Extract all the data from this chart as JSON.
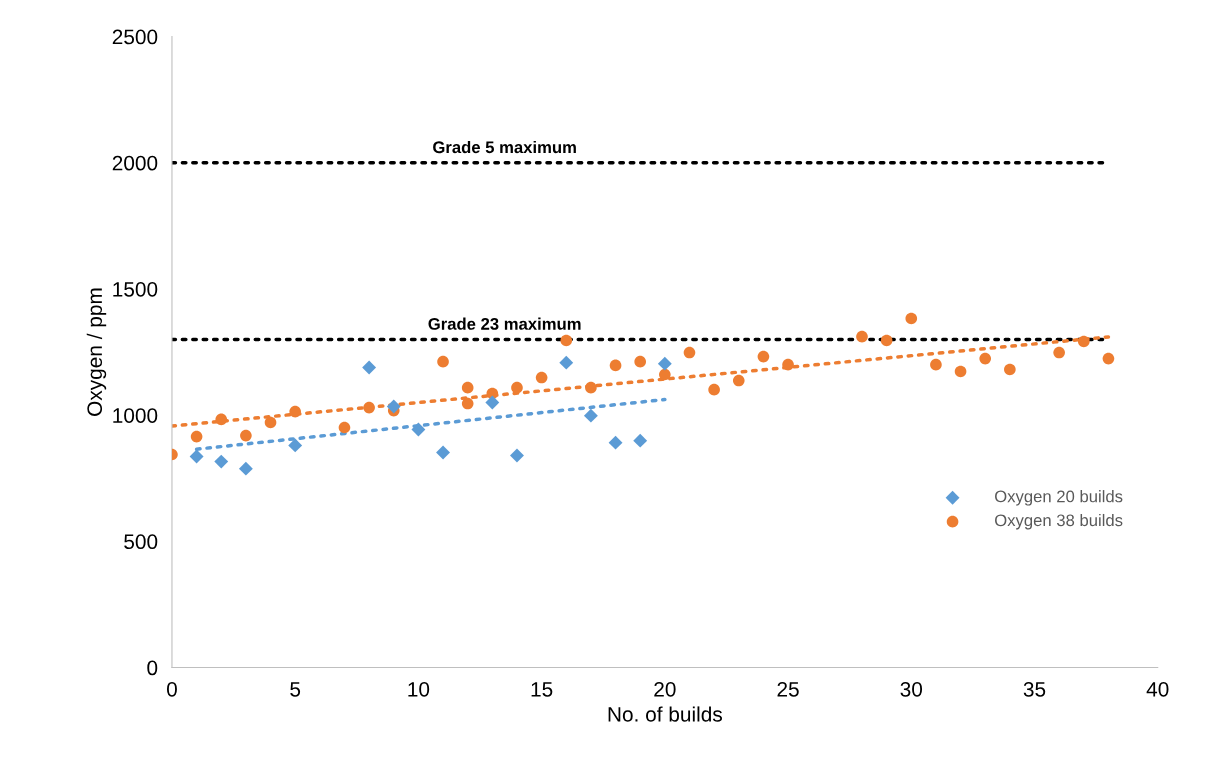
{
  "chart_data": {
    "type": "scatter",
    "xlabel": "No. of builds",
    "ylabel": "Oxygen / ppm",
    "xlim": [
      0,
      40
    ],
    "xticks": [
      0,
      5,
      10,
      15,
      20,
      25,
      30,
      35,
      40
    ],
    "ylim": [
      0,
      2500
    ],
    "yticks": [
      0,
      500,
      1000,
      1500,
      2000,
      2500
    ],
    "grid": false,
    "legend": "right",
    "series": [
      {
        "name": "Oxygen 20 builds",
        "color": "#5b9bd5",
        "marker": "diamond",
        "x": [
          1,
          2,
          3,
          5,
          8,
          9,
          10,
          11,
          13,
          14,
          16,
          17,
          18,
          19,
          20
        ],
        "values": [
          836,
          816,
          788,
          880,
          1189,
          1034,
          943,
          852,
          1050,
          840,
          1208,
          998,
          891,
          899,
          1204
        ]
      },
      {
        "name": "Oxygen 38 builds",
        "color": "#ed7d31",
        "marker": "circle",
        "x": [
          0,
          1,
          2,
          3,
          4,
          5,
          7,
          8,
          9,
          11,
          12,
          12,
          13,
          14,
          15,
          16,
          17,
          18,
          19,
          20,
          21,
          22,
          23,
          24,
          25,
          28,
          29,
          30,
          31,
          32,
          33,
          34,
          36,
          37,
          38
        ],
        "values": [
          844,
          915,
          983,
          919,
          971,
          1014,
          951,
          1030,
          1018,
          1212,
          1109,
          1046,
          1086,
          1109,
          1149,
          1296,
          1109,
          1197,
          1212,
          1161,
          1248,
          1101,
          1137,
          1232,
          1200,
          1311,
          1296,
          1383,
          1200,
          1173,
          1224,
          1181,
          1248,
          1292,
          1224
        ]
      },
      {
        "type": "line",
        "color": "#5b9bd5",
        "line_style": "dotted",
        "x": [
          1,
          20
        ],
        "values": [
          865,
          1062
        ]
      },
      {
        "type": "line",
        "color": "#ed7d31",
        "line_style": "dotted",
        "x": [
          0,
          38
        ],
        "values": [
          957,
          1310
        ]
      }
    ],
    "ref_lines": [
      {
        "axis": "y",
        "value": 2000,
        "label": "Grade 5 maximum",
        "color": "#000000",
        "line_style": "dotted"
      },
      {
        "axis": "y",
        "value": 1300,
        "label": "Grade 23 maximum",
        "color": "#000000",
        "line_style": "dotted"
      }
    ]
  }
}
